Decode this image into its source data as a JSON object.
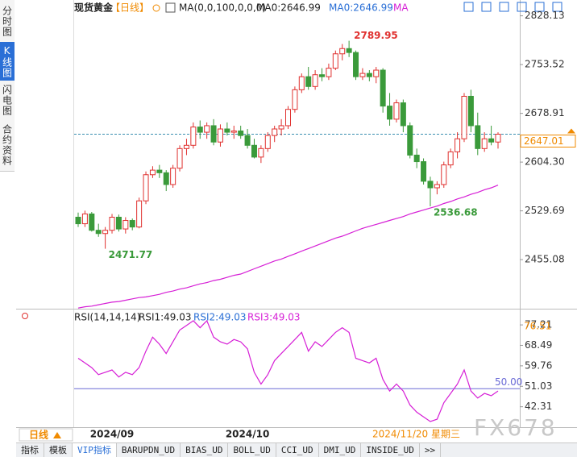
{
  "sidebar": [
    "分时图",
    "K线图",
    "闪电图",
    "合约资料"
  ],
  "tabs": [
    "指标",
    "模板",
    "VIP指标",
    "BARUPDN_UD",
    "BIAS_UD",
    "BOLL_UD",
    "CCI_UD",
    "DMI_UD",
    "INSIDE_UD",
    ">>"
  ],
  "period_tab": "日线",
  "watermark": "FX678",
  "chart_data": [
    {
      "type": "candlestick",
      "legend": [
        {
          "text": "现货黄金",
          "color": "#222222"
        },
        {
          "text": "【日线】",
          "color": "#f08a00"
        },
        {
          "text": "MA(0,0,100,0,0,0)",
          "color": "#222222"
        },
        {
          "text": "MA0:2646.99",
          "color": "#222222"
        },
        {
          "text": "MA0:2646.99",
          "color": "#2a6fd6"
        },
        {
          "text": "MA",
          "color": "#d61fd6"
        }
      ],
      "categories": [
        null,
        null,
        null,
        null,
        null,
        "2024/09",
        null,
        null,
        null,
        null,
        null,
        null,
        null,
        null,
        null,
        null,
        null,
        null,
        null,
        null,
        null,
        null,
        null,
        null,
        null,
        "2024/10",
        null,
        null,
        null,
        null,
        null,
        null,
        null,
        null,
        null,
        null,
        null,
        null,
        null,
        null,
        null,
        null,
        null,
        null,
        null,
        null,
        null,
        null,
        null,
        null,
        null,
        null,
        null,
        null,
        null,
        null,
        null,
        null,
        null,
        null,
        null,
        null,
        null
      ],
      "open": [
        2520,
        2510,
        2525,
        2500,
        2495,
        2500,
        2520,
        2502,
        2515,
        2505,
        2545,
        2585,
        2592,
        2588,
        2570,
        2595,
        2625,
        2630,
        2658,
        2650,
        2660,
        2635,
        2655,
        2650,
        2652,
        2645,
        2630,
        2612,
        2625,
        2645,
        2655,
        2660,
        2685,
        2715,
        2735,
        2720,
        2738,
        2735,
        2748,
        2770,
        2778,
        2772,
        2735,
        2740,
        2735,
        2745,
        2690,
        2670,
        2695,
        2660,
        2615,
        2605,
        2575,
        2565,
        2570,
        2600,
        2620,
        2640,
        2705,
        2660,
        2625,
        2640,
        2635
      ],
      "high": [
        2527,
        2530,
        2528,
        2510,
        2505,
        2525,
        2524,
        2520,
        2518,
        2550,
        2590,
        2598,
        2600,
        2592,
        2600,
        2630,
        2640,
        2665,
        2668,
        2665,
        2670,
        2662,
        2665,
        2660,
        2660,
        2655,
        2640,
        2630,
        2650,
        2660,
        2670,
        2690,
        2720,
        2740,
        2750,
        2745,
        2748,
        2755,
        2775,
        2785,
        2789.95,
        2775,
        2748,
        2745,
        2750,
        2748,
        2710,
        2700,
        2700,
        2665,
        2625,
        2610,
        2582,
        2575,
        2605,
        2625,
        2650,
        2710,
        2715,
        2680,
        2650,
        2660,
        2650
      ],
      "low": [
        2505,
        2505,
        2498,
        2490,
        2471.77,
        2495,
        2498,
        2495,
        2500,
        2503,
        2540,
        2580,
        2580,
        2560,
        2565,
        2590,
        2615,
        2625,
        2640,
        2640,
        2630,
        2628,
        2645,
        2640,
        2640,
        2625,
        2610,
        2603,
        2620,
        2635,
        2645,
        2655,
        2680,
        2710,
        2715,
        2715,
        2728,
        2730,
        2745,
        2760,
        2765,
        2730,
        2730,
        2728,
        2725,
        2680,
        2660,
        2665,
        2650,
        2610,
        2595,
        2570,
        2536.68,
        2555,
        2565,
        2595,
        2610,
        2635,
        2650,
        2615,
        2620,
        2630,
        2625
      ],
      "close": [
        2510,
        2525,
        2500,
        2495,
        2500,
        2520,
        2502,
        2515,
        2505,
        2545,
        2585,
        2592,
        2588,
        2570,
        2595,
        2625,
        2630,
        2658,
        2650,
        2660,
        2635,
        2655,
        2650,
        2652,
        2645,
        2630,
        2612,
        2625,
        2645,
        2655,
        2660,
        2685,
        2715,
        2735,
        2720,
        2738,
        2735,
        2748,
        2770,
        2778,
        2772,
        2735,
        2740,
        2735,
        2745,
        2690,
        2670,
        2695,
        2660,
        2615,
        2605,
        2575,
        2565,
        2570,
        2600,
        2620,
        2640,
        2705,
        2660,
        2625,
        2640,
        2635,
        2647.01
      ],
      "up_color": "#e0312f",
      "down_color": "#3a9a3a",
      "overlay": {
        "color": "#d61fd6",
        "values": [
          2381,
          2383,
          2384,
          2386,
          2388,
          2390,
          2391,
          2393,
          2395,
          2397,
          2398,
          2400,
          2402,
          2405,
          2407,
          2410,
          2412,
          2415,
          2418,
          2420,
          2423,
          2425,
          2428,
          2431,
          2433,
          2437,
          2441,
          2445,
          2449,
          2453,
          2456,
          2460,
          2464,
          2468,
          2472,
          2476,
          2480,
          2484,
          2488,
          2491,
          2495,
          2499,
          2503,
          2506,
          2509,
          2512,
          2515,
          2518,
          2521,
          2525,
          2528,
          2531,
          2534,
          2537,
          2541,
          2544,
          2548,
          2551,
          2555,
          2558,
          2562,
          2565,
          2569
        ]
      },
      "current_price": 2647.01,
      "cursor_date": "2024/11/20 星期三",
      "ylim": [
        2380,
        2840
      ],
      "yticks": [
        2828.13,
        2753.52,
        2678.91,
        {
          "value": 2604.3,
          "label": "2604.30"
        },
        2529.69,
        2455.08
      ],
      "grid": false
    },
    {
      "type": "line",
      "legend": [
        {
          "text": "RSI(14,14,14)",
          "color": "#222222"
        },
        {
          "text": "RSI1:49.03",
          "color": "#222222"
        },
        {
          "text": "RSI2:49.03",
          "color": "#2a6fd6"
        },
        {
          "text": "RSI3:49.03",
          "color": "#d61fd6"
        }
      ],
      "color": "#d61fd6",
      "values": [
        63,
        61,
        59,
        56,
        57,
        58,
        55,
        57,
        56,
        59,
        66,
        72,
        69,
        65,
        70,
        75,
        77,
        79,
        76,
        79,
        72,
        70,
        69,
        71,
        70,
        67,
        57,
        52,
        56,
        62,
        65,
        68,
        71,
        74,
        66,
        70,
        68,
        71,
        74,
        76,
        74,
        63,
        62,
        61,
        63,
        54,
        49,
        52,
        49,
        43,
        40,
        38,
        36,
        37,
        44,
        48,
        52,
        58,
        49,
        46,
        48,
        47,
        49.03
      ],
      "ref_line": {
        "value": 50,
        "label": "50.00",
        "color": "#6a6ad6"
      },
      "cursor_value": 76.51,
      "ylim": [
        33.6,
        82.4
      ],
      "yticks": [
        77.21,
        68.49,
        59.76,
        51.03,
        42.31
      ],
      "grid": false
    }
  ]
}
